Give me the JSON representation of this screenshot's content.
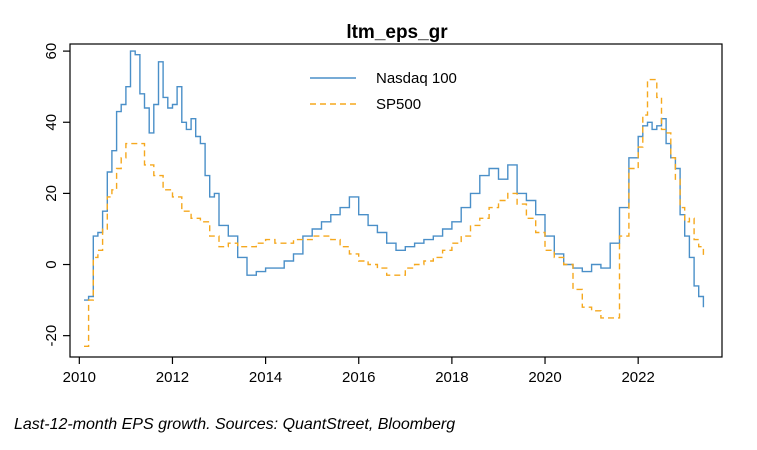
{
  "caption": "Last-12-month EPS growth. Sources: QuantStreet, Bloomberg",
  "chart_data": {
    "type": "line",
    "title": "ltm_eps_gr",
    "xlabel": "",
    "ylabel": "",
    "xlim": [
      2009.8,
      2023.8
    ],
    "ylim": [
      -26,
      62
    ],
    "x_ticks": [
      2010,
      2012,
      2014,
      2016,
      2018,
      2020,
      2022
    ],
    "x_tick_labels": [
      "2010",
      "2012",
      "2014",
      "2016",
      "2018",
      "2020",
      "2022"
    ],
    "y_ticks": [
      -20,
      0,
      20,
      40,
      60
    ],
    "y_tick_labels": [
      "-20",
      "0",
      "20",
      "40",
      "60"
    ],
    "grid": false,
    "legend_position": "top-center",
    "series": [
      {
        "name": "Nasdaq 100",
        "color": "#4a8fc8",
        "style": "solid",
        "x": [
          2010.1,
          2010.2,
          2010.3,
          2010.4,
          2010.5,
          2010.6,
          2010.7,
          2010.8,
          2010.9,
          2011.0,
          2011.1,
          2011.2,
          2011.3,
          2011.4,
          2011.5,
          2011.6,
          2011.7,
          2011.8,
          2011.9,
          2012.0,
          2012.1,
          2012.2,
          2012.3,
          2012.4,
          2012.5,
          2012.6,
          2012.7,
          2012.8,
          2012.9,
          2013.0,
          2013.2,
          2013.4,
          2013.6,
          2013.8,
          2014.0,
          2014.2,
          2014.4,
          2014.6,
          2014.8,
          2015.0,
          2015.2,
          2015.4,
          2015.6,
          2015.8,
          2016.0,
          2016.2,
          2016.4,
          2016.6,
          2016.8,
          2017.0,
          2017.2,
          2017.4,
          2017.6,
          2017.8,
          2018.0,
          2018.2,
          2018.4,
          2018.6,
          2018.8,
          2019.0,
          2019.2,
          2019.4,
          2019.6,
          2019.8,
          2020.0,
          2020.2,
          2020.4,
          2020.6,
          2020.8,
          2021.0,
          2021.2,
          2021.4,
          2021.6,
          2021.8,
          2022.0,
          2022.1,
          2022.2,
          2022.3,
          2022.4,
          2022.5,
          2022.6,
          2022.7,
          2022.8,
          2022.9,
          2023.0,
          2023.1,
          2023.2,
          2023.3,
          2023.4
        ],
        "values": [
          -10,
          -9,
          8,
          9,
          15,
          26,
          32,
          43,
          45,
          50,
          60,
          59,
          48,
          44,
          37,
          45,
          57,
          47,
          44,
          45,
          50,
          40,
          38,
          41,
          36,
          34,
          25,
          19,
          20,
          11,
          8,
          2,
          -3,
          -2,
          -1,
          -1,
          1,
          3,
          8,
          10,
          12,
          14,
          16,
          19,
          14,
          11,
          9,
          6,
          4,
          5,
          6,
          7,
          8,
          10,
          12,
          16,
          20,
          25,
          27,
          24,
          28,
          20,
          18,
          14,
          8,
          3,
          0,
          -1,
          -2,
          0,
          -1,
          6,
          16,
          30,
          36,
          39,
          40,
          38,
          39,
          41,
          34,
          30,
          27,
          14,
          8,
          2,
          -6,
          -9,
          -12
        ]
      },
      {
        "name": "SP500",
        "color": "#f5a81e",
        "style": "dashed",
        "x": [
          2010.1,
          2010.2,
          2010.3,
          2010.4,
          2010.5,
          2010.6,
          2010.7,
          2010.8,
          2010.9,
          2011.0,
          2011.2,
          2011.4,
          2011.6,
          2011.8,
          2012.0,
          2012.2,
          2012.4,
          2012.6,
          2012.8,
          2013.0,
          2013.2,
          2013.4,
          2013.6,
          2013.8,
          2014.0,
          2014.2,
          2014.4,
          2014.6,
          2014.8,
          2015.0,
          2015.2,
          2015.4,
          2015.6,
          2015.8,
          2016.0,
          2016.2,
          2016.4,
          2016.6,
          2016.8,
          2017.0,
          2017.2,
          2017.4,
          2017.6,
          2017.8,
          2018.0,
          2018.2,
          2018.4,
          2018.6,
          2018.8,
          2019.0,
          2019.2,
          2019.4,
          2019.6,
          2019.8,
          2020.0,
          2020.2,
          2020.4,
          2020.6,
          2020.8,
          2021.0,
          2021.2,
          2021.4,
          2021.6,
          2021.8,
          2022.0,
          2022.1,
          2022.2,
          2022.3,
          2022.4,
          2022.5,
          2022.6,
          2022.7,
          2022.8,
          2022.9,
          2023.0,
          2023.1,
          2023.2,
          2023.3,
          2023.4
        ],
        "values": [
          -23,
          -10,
          2,
          4,
          10,
          19,
          21,
          27,
          30,
          34,
          34,
          28,
          25,
          21,
          19,
          15,
          13,
          12,
          8,
          5,
          6,
          5,
          5,
          6,
          7,
          6,
          6,
          7,
          7,
          8,
          8,
          7,
          5,
          3,
          1,
          0,
          -1,
          -3,
          -3,
          -1,
          0,
          1,
          2,
          4,
          6,
          8,
          11,
          13,
          16,
          18,
          20,
          17,
          13,
          9,
          4,
          2,
          0,
          -7,
          -12,
          -13,
          -15,
          -15,
          8,
          27,
          33,
          42,
          52,
          52,
          47,
          38,
          37,
          30,
          24,
          16,
          12,
          13,
          7,
          5,
          2
        ]
      }
    ]
  }
}
